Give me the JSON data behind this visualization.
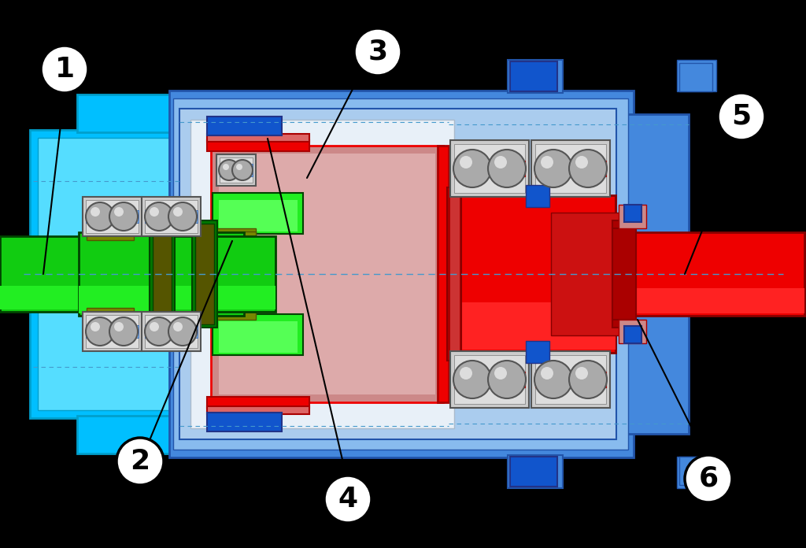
{
  "background_color": "#000000",
  "colors": {
    "bg": "#000000",
    "cyan": "#00BFFF",
    "cyan_dark": "#009FCC",
    "blue_med": "#4488DD",
    "blue_light": "#88BBEE",
    "blue_inner": "#AACCEE",
    "blue_dark": "#2255AA",
    "blue_bright": "#1155CC",
    "green_bright": "#22EE22",
    "green_mid": "#11CC11",
    "green_dark": "#007700",
    "green_vdark": "#004400",
    "olive": "#778800",
    "olive_dark": "#555500",
    "red_bright": "#FF2222",
    "red_mid": "#EE0000",
    "red_dark": "#AA0000",
    "red_vdark": "#880000",
    "pink": "#CC8888",
    "pink_light": "#DDAAAA",
    "gray_light": "#CCCCCC",
    "gray_mid": "#AAAAAA",
    "gray_dark": "#777777",
    "gray_vdark": "#555555",
    "navy": "#223388",
    "white": "#FFFFFF",
    "black": "#000000"
  },
  "figsize": [
    10.24,
    6.96
  ],
  "dpi": 100
}
